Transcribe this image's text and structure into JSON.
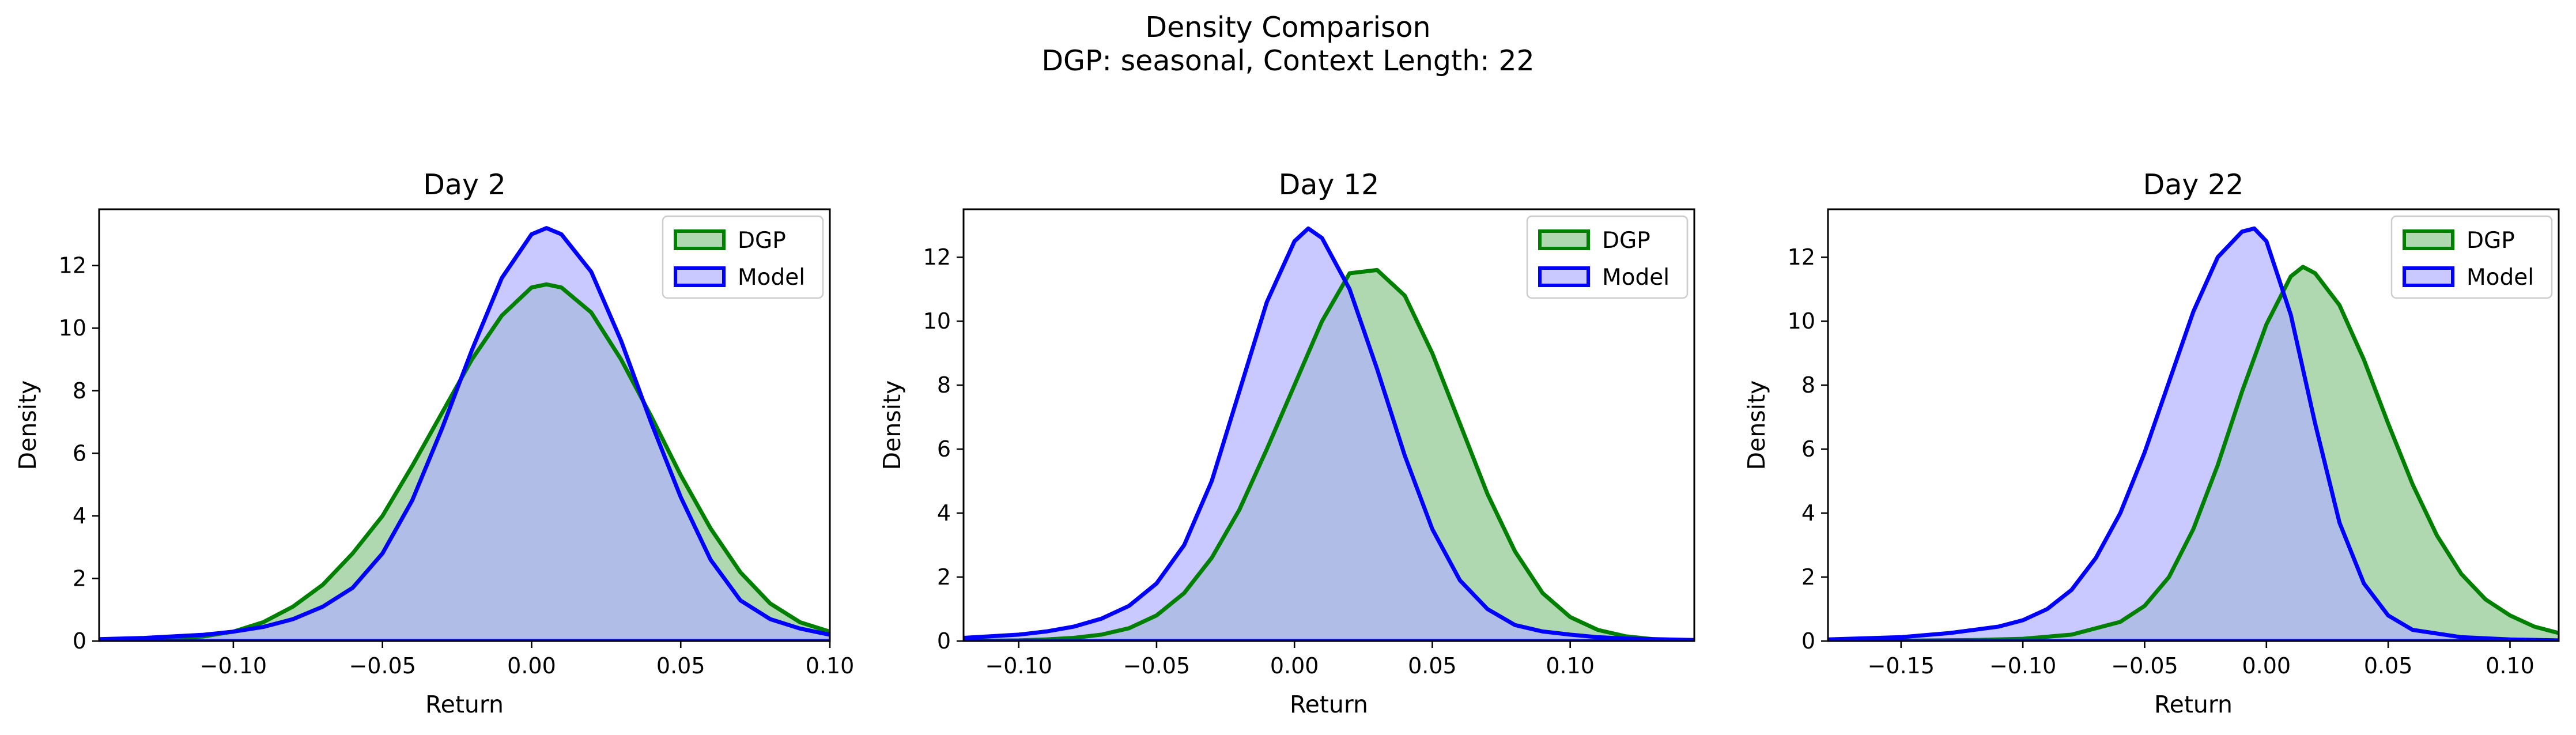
{
  "figure": {
    "suptitle_line1": "Density Comparison",
    "suptitle_line2": "DGP: seasonal, Context Length: 22"
  },
  "colors": {
    "dgp_line": "#008000",
    "dgp_fill": "#b0d8b0",
    "model_line": "#0000ff",
    "model_fill": "#afafff",
    "overlap_fill": "#7f98c8"
  },
  "chart_data": [
    {
      "type": "area",
      "title": "Day 2",
      "xlabel": "Return",
      "ylabel": "Density",
      "xlim": [
        -0.145,
        0.1
      ],
      "ylim": [
        0,
        13.8
      ],
      "xticks": [
        -0.1,
        -0.05,
        0.0,
        0.05,
        0.1
      ],
      "xtick_labels": [
        "−0.10",
        "−0.05",
        "0.00",
        "0.05",
        "0.10"
      ],
      "yticks": [
        0,
        2,
        4,
        6,
        8,
        10,
        12
      ],
      "ytick_labels": [
        "0",
        "2",
        "4",
        "6",
        "8",
        "10",
        "12"
      ],
      "legend": "top-right",
      "grid": false,
      "series": [
        {
          "name": "DGP",
          "x": [
            -0.145,
            -0.13,
            -0.12,
            -0.11,
            -0.1,
            -0.09,
            -0.08,
            -0.07,
            -0.06,
            -0.05,
            -0.04,
            -0.03,
            -0.02,
            -0.01,
            0.0,
            0.005,
            0.01,
            0.02,
            0.03,
            0.04,
            0.05,
            0.06,
            0.07,
            0.08,
            0.09,
            0.1
          ],
          "values": [
            0.01,
            0.03,
            0.07,
            0.15,
            0.3,
            0.6,
            1.1,
            1.8,
            2.8,
            4.0,
            5.6,
            7.3,
            9.0,
            10.4,
            11.3,
            11.4,
            11.3,
            10.5,
            9.0,
            7.2,
            5.3,
            3.6,
            2.2,
            1.2,
            0.6,
            0.3
          ]
        },
        {
          "name": "Model",
          "x": [
            -0.145,
            -0.13,
            -0.12,
            -0.11,
            -0.1,
            -0.09,
            -0.08,
            -0.07,
            -0.06,
            -0.05,
            -0.04,
            -0.03,
            -0.02,
            -0.01,
            0.0,
            0.005,
            0.01,
            0.02,
            0.03,
            0.04,
            0.05,
            0.06,
            0.07,
            0.08,
            0.09,
            0.1
          ],
          "values": [
            0.06,
            0.1,
            0.15,
            0.2,
            0.3,
            0.45,
            0.7,
            1.1,
            1.7,
            2.8,
            4.5,
            6.8,
            9.3,
            11.6,
            13.0,
            13.2,
            13.0,
            11.8,
            9.6,
            7.0,
            4.6,
            2.6,
            1.3,
            0.7,
            0.4,
            0.2
          ]
        }
      ]
    },
    {
      "type": "area",
      "title": "Day 12",
      "xlabel": "Return",
      "ylabel": "Density",
      "xlim": [
        -0.12,
        0.145
      ],
      "ylim": [
        0,
        13.5
      ],
      "xticks": [
        -0.1,
        -0.05,
        0.0,
        0.05,
        0.1
      ],
      "xtick_labels": [
        "−0.10",
        "−0.05",
        "0.00",
        "0.05",
        "0.10"
      ],
      "yticks": [
        0,
        2,
        4,
        6,
        8,
        10,
        12
      ],
      "ytick_labels": [
        "0",
        "2",
        "4",
        "6",
        "8",
        "10",
        "12"
      ],
      "legend": "top-right",
      "grid": false,
      "series": [
        {
          "name": "DGP",
          "x": [
            -0.12,
            -0.1,
            -0.09,
            -0.08,
            -0.07,
            -0.06,
            -0.05,
            -0.04,
            -0.03,
            -0.02,
            -0.01,
            0.0,
            0.01,
            0.02,
            0.03,
            0.04,
            0.05,
            0.06,
            0.07,
            0.08,
            0.09,
            0.1,
            0.11,
            0.12,
            0.13,
            0.145
          ],
          "values": [
            0.005,
            0.02,
            0.05,
            0.1,
            0.2,
            0.4,
            0.8,
            1.5,
            2.6,
            4.1,
            6.0,
            8.0,
            10.0,
            11.5,
            11.6,
            10.8,
            9.0,
            6.8,
            4.6,
            2.8,
            1.5,
            0.75,
            0.35,
            0.15,
            0.06,
            0.02
          ]
        },
        {
          "name": "Model",
          "x": [
            -0.12,
            -0.1,
            -0.09,
            -0.08,
            -0.07,
            -0.06,
            -0.05,
            -0.04,
            -0.03,
            -0.02,
            -0.01,
            0.0,
            0.005,
            0.01,
            0.02,
            0.03,
            0.04,
            0.05,
            0.06,
            0.07,
            0.08,
            0.09,
            0.1,
            0.11,
            0.12,
            0.145
          ],
          "values": [
            0.1,
            0.2,
            0.3,
            0.45,
            0.7,
            1.1,
            1.8,
            3.0,
            5.0,
            7.8,
            10.6,
            12.5,
            12.9,
            12.6,
            11.0,
            8.5,
            5.8,
            3.5,
            1.9,
            1.0,
            0.5,
            0.3,
            0.2,
            0.12,
            0.08,
            0.03
          ]
        }
      ]
    },
    {
      "type": "area",
      "title": "Day 22",
      "xlabel": "Return",
      "ylabel": "Density",
      "xlim": [
        -0.18,
        0.12
      ],
      "ylim": [
        0,
        13.5
      ],
      "xticks": [
        -0.15,
        -0.1,
        -0.05,
        0.0,
        0.05,
        0.1
      ],
      "xtick_labels": [
        "−0.15",
        "−0.10",
        "−0.05",
        "0.00",
        "0.05",
        "0.10"
      ],
      "yticks": [
        0,
        2,
        4,
        6,
        8,
        10,
        12
      ],
      "ytick_labels": [
        "0",
        "2",
        "4",
        "6",
        "8",
        "10",
        "12"
      ],
      "legend": "top-right",
      "grid": false,
      "series": [
        {
          "name": "DGP",
          "x": [
            -0.18,
            -0.15,
            -0.12,
            -0.1,
            -0.08,
            -0.06,
            -0.05,
            -0.04,
            -0.03,
            -0.02,
            -0.01,
            0.0,
            0.01,
            0.015,
            0.02,
            0.03,
            0.04,
            0.05,
            0.06,
            0.07,
            0.08,
            0.09,
            0.1,
            0.11,
            0.12
          ],
          "values": [
            0.0,
            0.01,
            0.03,
            0.07,
            0.2,
            0.6,
            1.1,
            2.0,
            3.5,
            5.5,
            7.8,
            9.9,
            11.4,
            11.7,
            11.5,
            10.5,
            8.8,
            6.8,
            4.9,
            3.3,
            2.1,
            1.3,
            0.8,
            0.45,
            0.25
          ]
        },
        {
          "name": "Model",
          "x": [
            -0.18,
            -0.15,
            -0.13,
            -0.11,
            -0.1,
            -0.09,
            -0.08,
            -0.07,
            -0.06,
            -0.05,
            -0.04,
            -0.03,
            -0.02,
            -0.01,
            -0.005,
            0.0,
            0.01,
            0.02,
            0.03,
            0.04,
            0.05,
            0.06,
            0.08,
            0.1,
            0.12
          ],
          "values": [
            0.05,
            0.12,
            0.25,
            0.45,
            0.65,
            1.0,
            1.6,
            2.6,
            4.0,
            5.9,
            8.1,
            10.3,
            12.0,
            12.8,
            12.9,
            12.5,
            10.2,
            6.8,
            3.7,
            1.8,
            0.8,
            0.35,
            0.12,
            0.05,
            0.02
          ]
        }
      ]
    }
  ]
}
